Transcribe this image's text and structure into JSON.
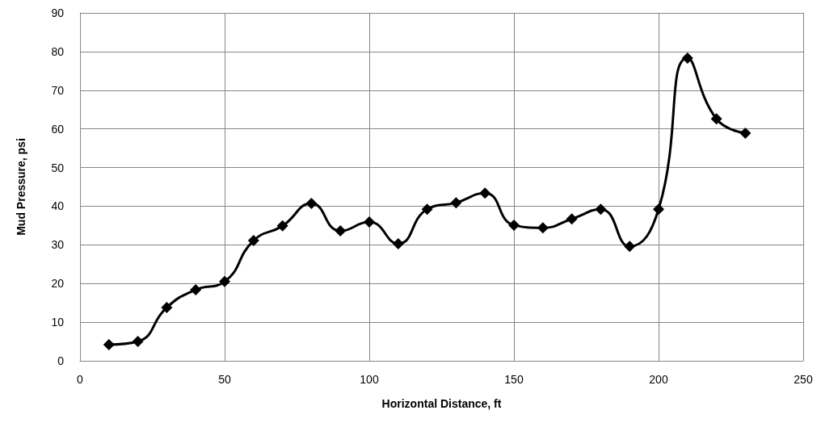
{
  "chart_data": {
    "type": "line",
    "xlabel": "Horizontal Distance, ft",
    "ylabel": "Mud Pressure, psi",
    "x": [
      10,
      20,
      30,
      40,
      50,
      60,
      70,
      80,
      90,
      100,
      110,
      120,
      130,
      140,
      150,
      160,
      170,
      180,
      190,
      200,
      210,
      220,
      230
    ],
    "series": [
      {
        "color": "#000000",
        "values": [
          4.2,
          5.0,
          13.8,
          18.4,
          20.5,
          31.1,
          34.9,
          40.7,
          33.6,
          35.9,
          30.3,
          39.2,
          40.9,
          43.4,
          35.1,
          34.4,
          36.7,
          39.2,
          29.6,
          39.2,
          78.3,
          62.6,
          58.9
        ]
      }
    ],
    "xlim": [
      0,
      250
    ],
    "xticks": [
      0,
      50,
      100,
      150,
      200,
      250
    ],
    "ylim": [
      0,
      90
    ],
    "yticks": [
      0,
      10,
      20,
      30,
      40,
      50,
      60,
      70,
      80,
      90
    ],
    "grid": true,
    "marker": "diamond",
    "line_style": "solid"
  }
}
